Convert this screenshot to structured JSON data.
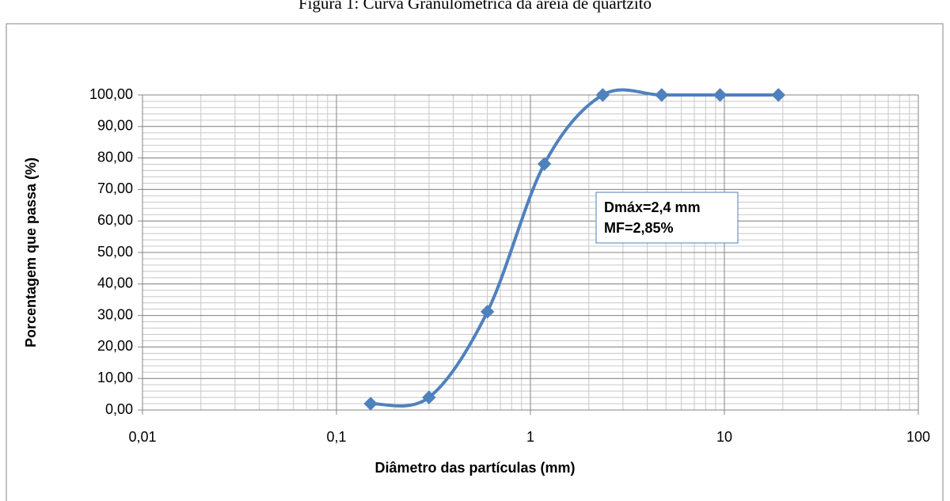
{
  "chart_data": {
    "type": "line",
    "title": "Figura 1: Curva Granulométrica da areia de quartzito",
    "x_label": "Diâmetro das partículas (mm)",
    "y_label": "Porcentagem que passa (%)",
    "annotations": [
      "Dmáx=2,4 mm",
      "MF=2,85%"
    ],
    "x": [
      0.15,
      0.3,
      0.6,
      1.18,
      2.36,
      4.75,
      9.5,
      19
    ],
    "values": [
      2,
      4,
      31.2,
      78.1,
      100,
      100,
      100,
      100
    ],
    "color": "#4f81bd",
    "x_log": true,
    "xlim": [
      0.01,
      100
    ],
    "xticks": [
      {
        "value": 0.01,
        "label": "0,01"
      },
      {
        "value": 0.1,
        "label": "0,1"
      },
      1,
      10,
      100
    ],
    "ylim": [
      0,
      100
    ],
    "yticks": [
      {
        "value": 0,
        "label": "0,00"
      },
      {
        "value": 10,
        "label": "10,00"
      },
      {
        "value": 20,
        "label": "20,00"
      },
      {
        "value": 30,
        "label": "30,00"
      },
      {
        "value": 40,
        "label": "40,00"
      },
      {
        "value": 50,
        "label": "50,00"
      },
      {
        "value": 60,
        "label": "60,00"
      },
      {
        "value": 70,
        "label": "70,00"
      },
      {
        "value": 80,
        "label": "80,00"
      },
      {
        "value": 90,
        "label": "90,00"
      },
      {
        "value": 100,
        "label": "100,00"
      }
    ],
    "grid": true
  }
}
